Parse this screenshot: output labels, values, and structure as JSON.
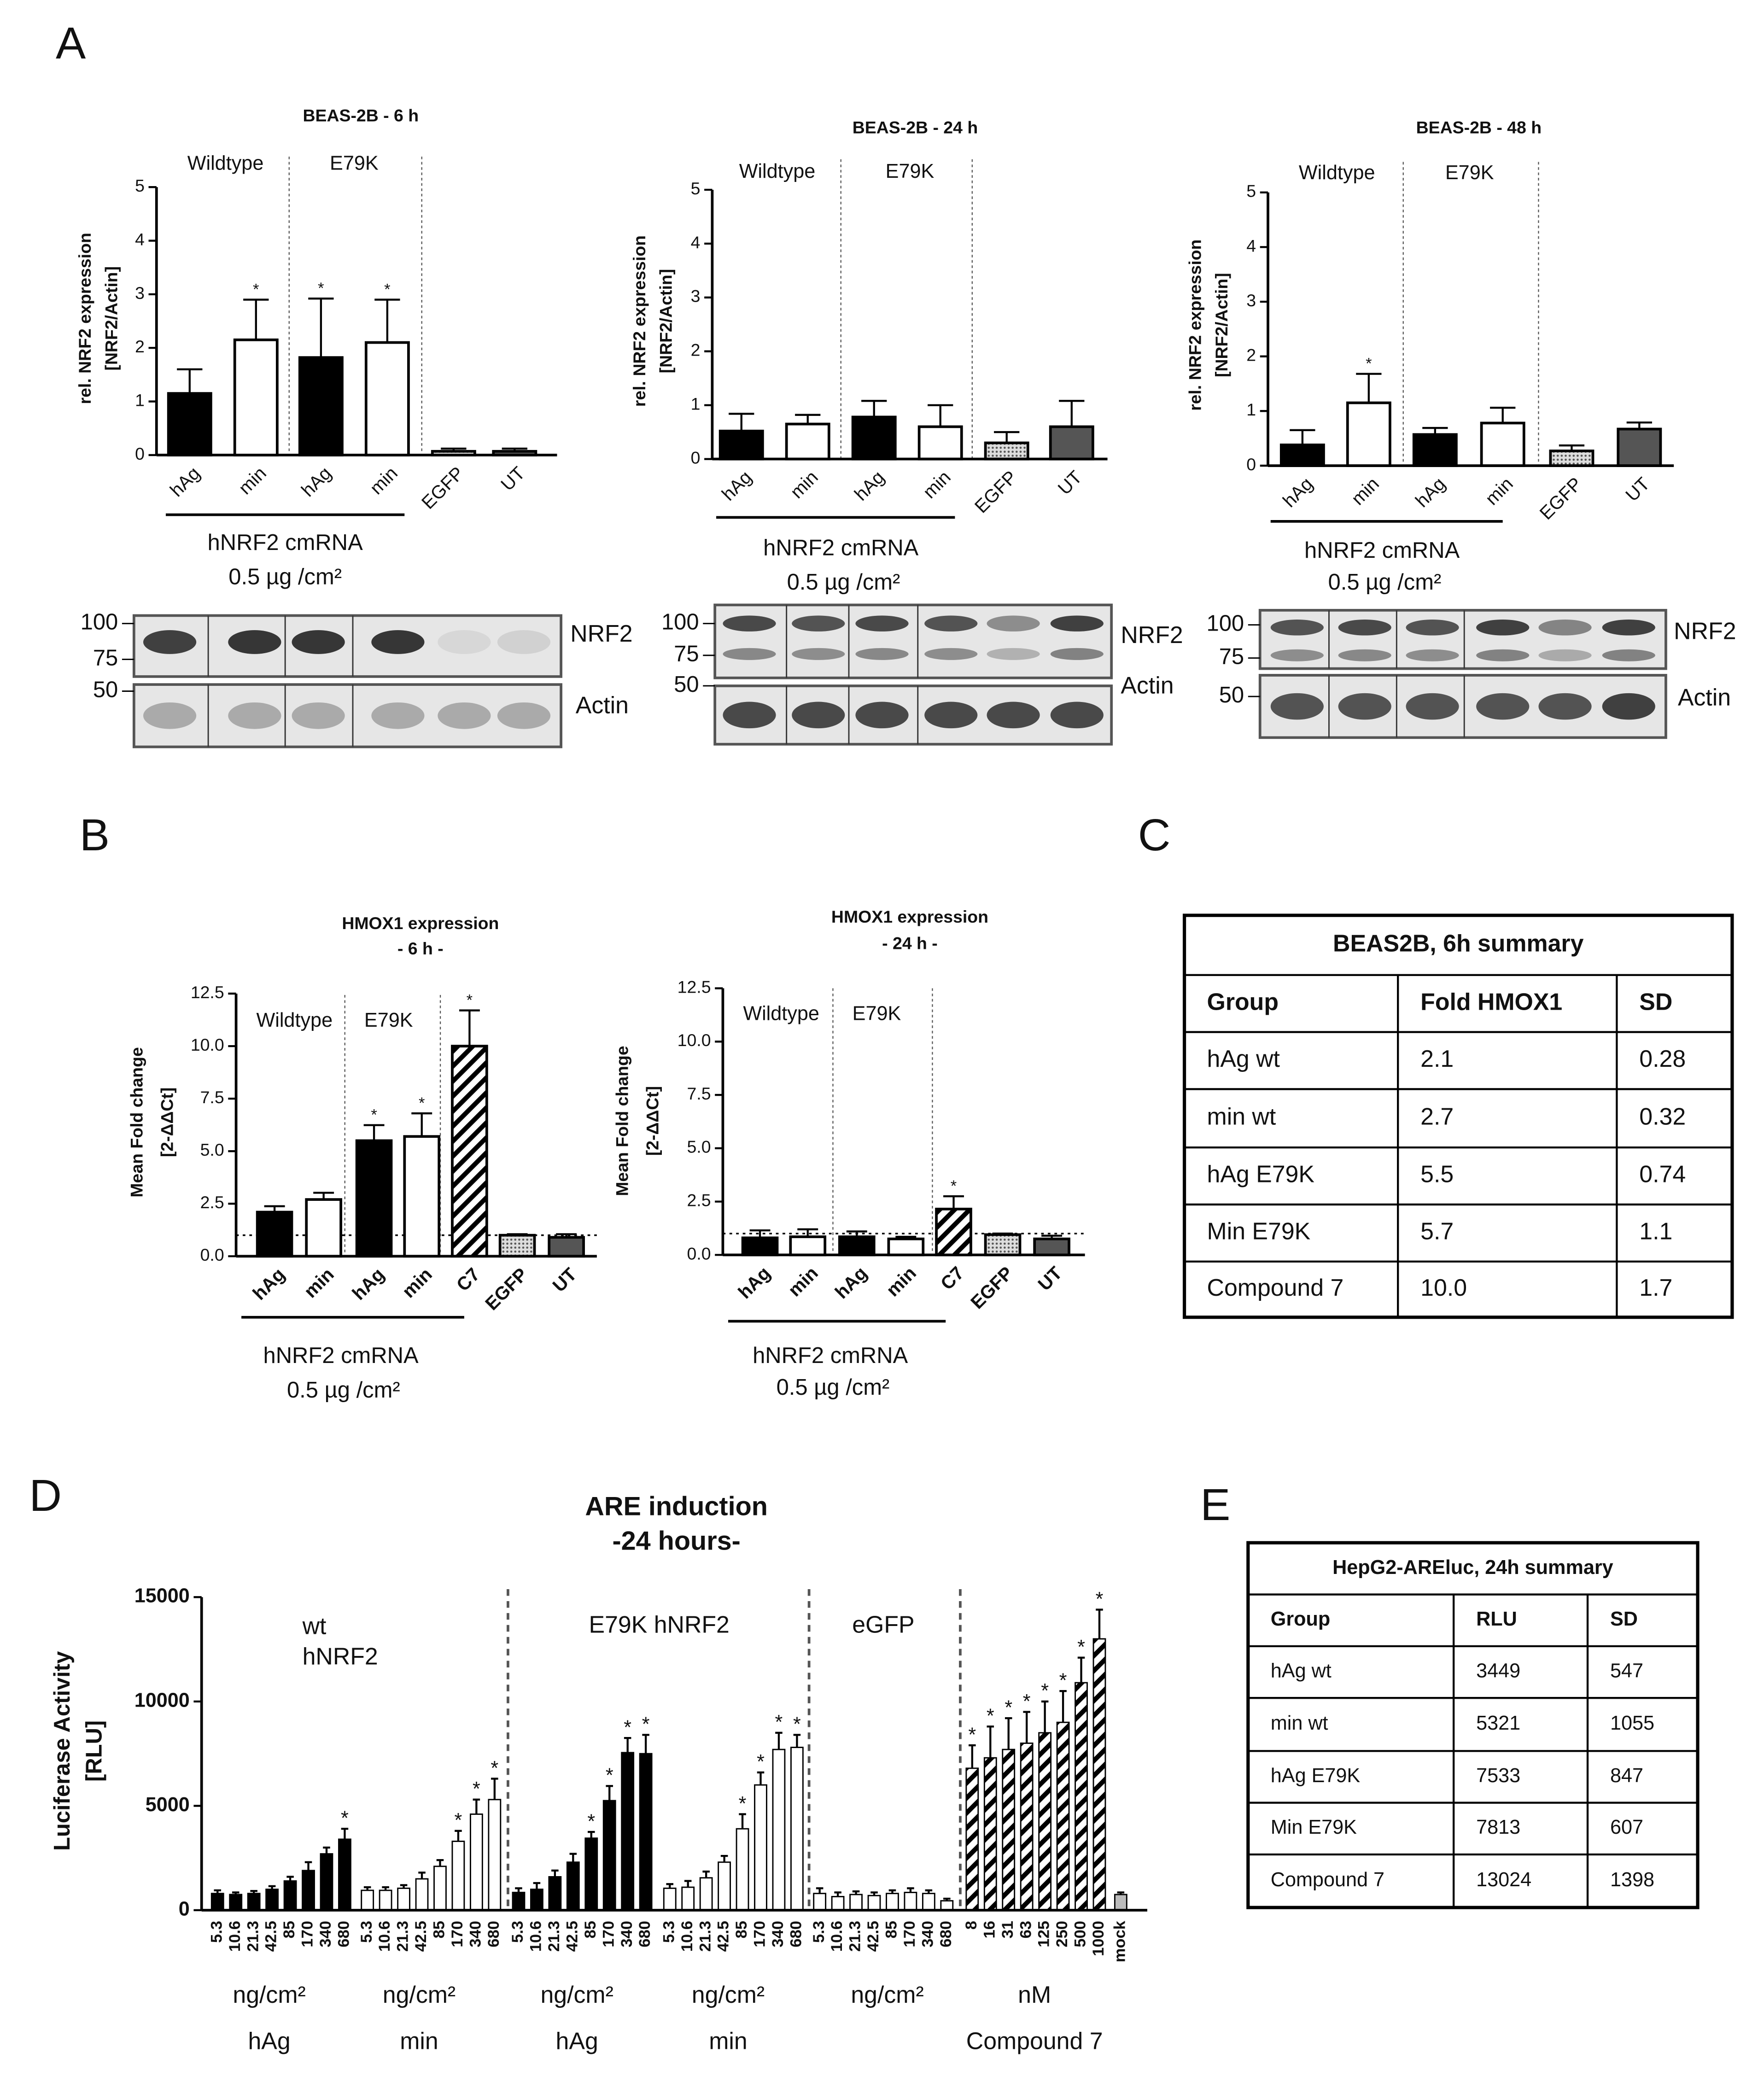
{
  "panels": [
    "A",
    "B",
    "C",
    "D",
    "E"
  ],
  "chart_data": [
    {
      "type": "bar",
      "title": [
        "BEAS-2B - 6 h"
      ],
      "ylabel": [
        "rel. NRF2 expression",
        "[NRF2/Actin]"
      ],
      "group_labels": [
        "Wildtype",
        "E79K"
      ],
      "categories": [
        "hAg",
        "min",
        "hAg",
        "min",
        "EGFP",
        "UT"
      ],
      "values": [
        1.15,
        2.15,
        1.82,
        2.1,
        0.07,
        0.07
      ],
      "errors": [
        0.45,
        0.75,
        1.1,
        0.8,
        0.05,
        0.05
      ],
      "significance": [
        null,
        "*",
        "*",
        "*",
        null,
        null
      ],
      "fills": [
        "#000000",
        "#ffffff",
        "#000000",
        "#ffffff",
        "dots",
        "#555555"
      ],
      "ylim": [
        0,
        5
      ],
      "yticks": [
        0,
        1,
        2,
        3,
        4,
        5
      ],
      "bracket_label": [
        "hNRF2 cmRNA",
        "0.5 µg /cm²"
      ],
      "blot": {
        "markers": [
          100,
          75,
          50
        ],
        "labels": [
          "NRF2",
          "Actin"
        ]
      }
    },
    {
      "type": "bar",
      "title": [
        "BEAS-2B - 24 h"
      ],
      "ylabel": [
        "rel. NRF2 expression",
        "[NRF2/Actin]"
      ],
      "group_labels": [
        "Wildtype",
        "E79K"
      ],
      "categories": [
        "hAg",
        "min",
        "hAg",
        "min",
        "EGFP",
        "UT"
      ],
      "values": [
        0.52,
        0.65,
        0.78,
        0.6,
        0.3,
        0.6
      ],
      "errors": [
        0.32,
        0.17,
        0.3,
        0.4,
        0.2,
        0.48
      ],
      "significance": [
        null,
        null,
        null,
        null,
        null,
        null
      ],
      "fills": [
        "#000000",
        "#ffffff",
        "#000000",
        "#ffffff",
        "dots",
        "#555555"
      ],
      "ylim": [
        0,
        5
      ],
      "yticks": [
        0,
        1,
        2,
        3,
        4,
        5
      ],
      "bracket_label": [
        "hNRF2 cmRNA",
        "0.5 µg /cm²"
      ],
      "blot": {
        "markers": [
          100,
          75,
          50
        ],
        "labels": [
          "NRF2",
          "Actin"
        ]
      }
    },
    {
      "type": "bar",
      "title": [
        "BEAS-2B - 48 h"
      ],
      "ylabel": [
        "rel. NRF2 expression",
        "[NRF2/Actin]"
      ],
      "group_labels": [
        "Wildtype",
        "E79K"
      ],
      "categories": [
        "hAg",
        "min",
        "hAg",
        "min",
        "EGFP",
        "UT"
      ],
      "values": [
        0.38,
        1.15,
        0.57,
        0.78,
        0.27,
        0.67
      ],
      "errors": [
        0.27,
        0.53,
        0.12,
        0.28,
        0.1,
        0.12
      ],
      "significance": [
        null,
        "*",
        null,
        null,
        null,
        null
      ],
      "fills": [
        "#000000",
        "#ffffff",
        "#000000",
        "#ffffff",
        "dots",
        "#555555"
      ],
      "ylim": [
        0,
        5
      ],
      "yticks": [
        0,
        1,
        2,
        3,
        4,
        5
      ],
      "bracket_label": [
        "hNRF2 cmRNA",
        "0.5 µg /cm²"
      ],
      "blot": {
        "markers": [
          100,
          75,
          50
        ],
        "labels": [
          "NRF2",
          "Actin"
        ]
      }
    },
    {
      "type": "bar",
      "title": [
        "HMOX1 expression",
        "- 6 h -"
      ],
      "ylabel": [
        "Mean Fold change",
        "[2-ΔΔCt]"
      ],
      "group_labels": [
        "Wildtype",
        "E79K"
      ],
      "categories": [
        "hAg",
        "min",
        "hAg",
        "min",
        "C7",
        "EGFP",
        "UT"
      ],
      "values": [
        2.1,
        2.7,
        5.5,
        5.7,
        10.0,
        1.0,
        0.9
      ],
      "errors": [
        0.28,
        0.32,
        0.74,
        1.1,
        1.7,
        0.05,
        0.15
      ],
      "significance": [
        null,
        null,
        "*",
        "*",
        "*",
        null,
        null
      ],
      "fills": [
        "#000000",
        "#ffffff",
        "#000000",
        "#ffffff",
        "hatch",
        "dots",
        "#555555"
      ],
      "ylim": [
        0,
        12.5
      ],
      "yticks": [
        {
          "value": 0,
          "label": "0.0"
        },
        2.5,
        {
          "value": 5,
          "label": "5.0"
        },
        7.5,
        {
          "value": 10,
          "label": "10.0"
        },
        12.5
      ],
      "reference_line": 1,
      "bracket_label": [
        "hNRF2 cmRNA",
        "0.5 µg /cm²"
      ]
    },
    {
      "type": "bar",
      "title": [
        "HMOX1 expression",
        "- 24 h -"
      ],
      "ylabel": [
        "Mean Fold change",
        "[2-ΔΔCt]"
      ],
      "group_labels": [
        "Wildtype",
        "E79K"
      ],
      "categories": [
        "hAg",
        "min",
        "hAg",
        "min",
        "C7",
        "EGFP",
        "UT"
      ],
      "values": [
        0.8,
        0.85,
        0.85,
        0.75,
        2.15,
        0.95,
        0.75
      ],
      "errors": [
        0.35,
        0.35,
        0.25,
        0.1,
        0.6,
        0.05,
        0.15
      ],
      "significance": [
        null,
        null,
        null,
        null,
        "*",
        null,
        null
      ],
      "fills": [
        "#000000",
        "#ffffff",
        "#000000",
        "#ffffff",
        "hatch",
        "dots",
        "#555555"
      ],
      "ylim": [
        0,
        12.5
      ],
      "yticks": [
        {
          "value": 0,
          "label": "0.0"
        },
        2.5,
        {
          "value": 5,
          "label": "5.0"
        },
        7.5,
        {
          "value": 10,
          "label": "10.0"
        },
        12.5
      ],
      "reference_line": 1,
      "bracket_label": [
        "hNRF2 cmRNA",
        "0.5 µg /cm²"
      ]
    },
    {
      "type": "bar",
      "title": [
        "ARE induction",
        "-24 hours-"
      ],
      "ylabel": [
        "Luciferase Activity",
        "[RLU]"
      ],
      "group_labels": [
        "wt",
        "hNRF2",
        "E79K hNRF2",
        "eGFP"
      ],
      "categories": [
        5.3,
        10.6,
        21.3,
        42.5,
        85,
        170,
        340,
        680,
        5.3,
        10.6,
        21.3,
        42.5,
        85,
        170,
        340,
        680,
        5.3,
        10.6,
        21.3,
        42.5,
        85,
        170,
        340,
        680,
        5.3,
        10.6,
        21.3,
        42.5,
        85,
        170,
        340,
        680,
        5.3,
        10.6,
        21.3,
        42.5,
        85,
        170,
        340,
        680,
        8,
        16,
        31,
        63,
        125,
        250,
        500,
        1000,
        "mock"
      ],
      "values": [
        800,
        750,
        800,
        1000,
        1400,
        1900,
        2700,
        3400,
        950,
        950,
        1050,
        1500,
        2100,
        3300,
        4600,
        5300,
        850,
        1000,
        1600,
        2300,
        3450,
        5250,
        7550,
        7500,
        1050,
        1100,
        1550,
        2300,
        3900,
        6000,
        7700,
        7800,
        800,
        650,
        750,
        700,
        800,
        850,
        800,
        450,
        6800,
        7300,
        7700,
        8000,
        8500,
        9000,
        10900,
        13000,
        750
      ],
      "errors": [
        150,
        100,
        120,
        150,
        200,
        400,
        300,
        500,
        150,
        150,
        150,
        300,
        300,
        500,
        700,
        1000,
        200,
        300,
        300,
        400,
        300,
        700,
        700,
        900,
        200,
        300,
        300,
        300,
        700,
        600,
        800,
        600,
        250,
        200,
        150,
        150,
        150,
        200,
        150,
        100,
        1100,
        1500,
        1500,
        1500,
        1500,
        1500,
        1200,
        1400,
        100
      ],
      "significance": [
        null,
        null,
        null,
        null,
        null,
        null,
        null,
        "*",
        null,
        null,
        null,
        null,
        null,
        "*",
        "*",
        "*",
        null,
        null,
        null,
        null,
        "*",
        "*",
        "*",
        "*",
        null,
        null,
        null,
        null,
        "*",
        "*",
        "*",
        "*",
        null,
        null,
        null,
        null,
        null,
        null,
        null,
        null,
        "*",
        "*",
        "*",
        "*",
        "*",
        "*",
        "*",
        "*",
        null
      ],
      "fills": [
        "#000000",
        "#000000",
        "#000000",
        "#000000",
        "#000000",
        "#000000",
        "#000000",
        "#000000",
        "#ffffff",
        "#ffffff",
        "#ffffff",
        "#ffffff",
        "#ffffff",
        "#ffffff",
        "#ffffff",
        "#ffffff",
        "#000000",
        "#000000",
        "#000000",
        "#000000",
        "#000000",
        "#000000",
        "#000000",
        "#000000",
        "#ffffff",
        "#ffffff",
        "#ffffff",
        "#ffffff",
        "#ffffff",
        "#ffffff",
        "#ffffff",
        "#ffffff",
        "#ffffff",
        "#ffffff",
        "#ffffff",
        "#ffffff",
        "#ffffff",
        "#ffffff",
        "#ffffff",
        "#ffffff",
        "hatch",
        "hatch",
        "hatch",
        "hatch",
        "hatch",
        "hatch",
        "hatch",
        "hatch",
        "#bbbbbb"
      ],
      "ylim": [
        0,
        15000
      ],
      "yticks": [
        0,
        5000,
        10000,
        15000
      ],
      "x_groups": [
        {
          "unit": "ng/cm²",
          "name": "hAg"
        },
        {
          "unit": "ng/cm²",
          "name": "min"
        },
        {
          "unit": "ng/cm²",
          "name": "hAg"
        },
        {
          "unit": "ng/cm²",
          "name": "min"
        },
        {
          "unit": "ng/cm²"
        },
        {
          "unit": "nM",
          "name": "Compound 7"
        }
      ]
    }
  ],
  "tables": [
    {
      "title": "BEAS2B, 6h summary",
      "header": [
        "Group",
        "Fold HMOX1",
        "SD"
      ],
      "rows": [
        [
          "hAg wt",
          "2.1",
          "0.28"
        ],
        [
          "min wt",
          "2.7",
          "0.32"
        ],
        [
          "hAg E79K",
          "5.5",
          "0.74"
        ],
        [
          "Min E79K",
          "5.7",
          "1.1"
        ],
        [
          "Compound 7",
          "10.0",
          "1.7"
        ]
      ]
    },
    {
      "title": "HepG2-AREluc, 24h summary",
      "header": [
        "Group",
        "RLU",
        "SD"
      ],
      "rows": [
        [
          "hAg wt",
          "3449",
          "547"
        ],
        [
          "min wt",
          "5321",
          "1055"
        ],
        [
          "hAg E79K",
          "7533",
          "847"
        ],
        [
          "Min E79K",
          "7813",
          "607"
        ],
        [
          "Compound 7",
          "13024",
          "1398"
        ]
      ]
    }
  ]
}
